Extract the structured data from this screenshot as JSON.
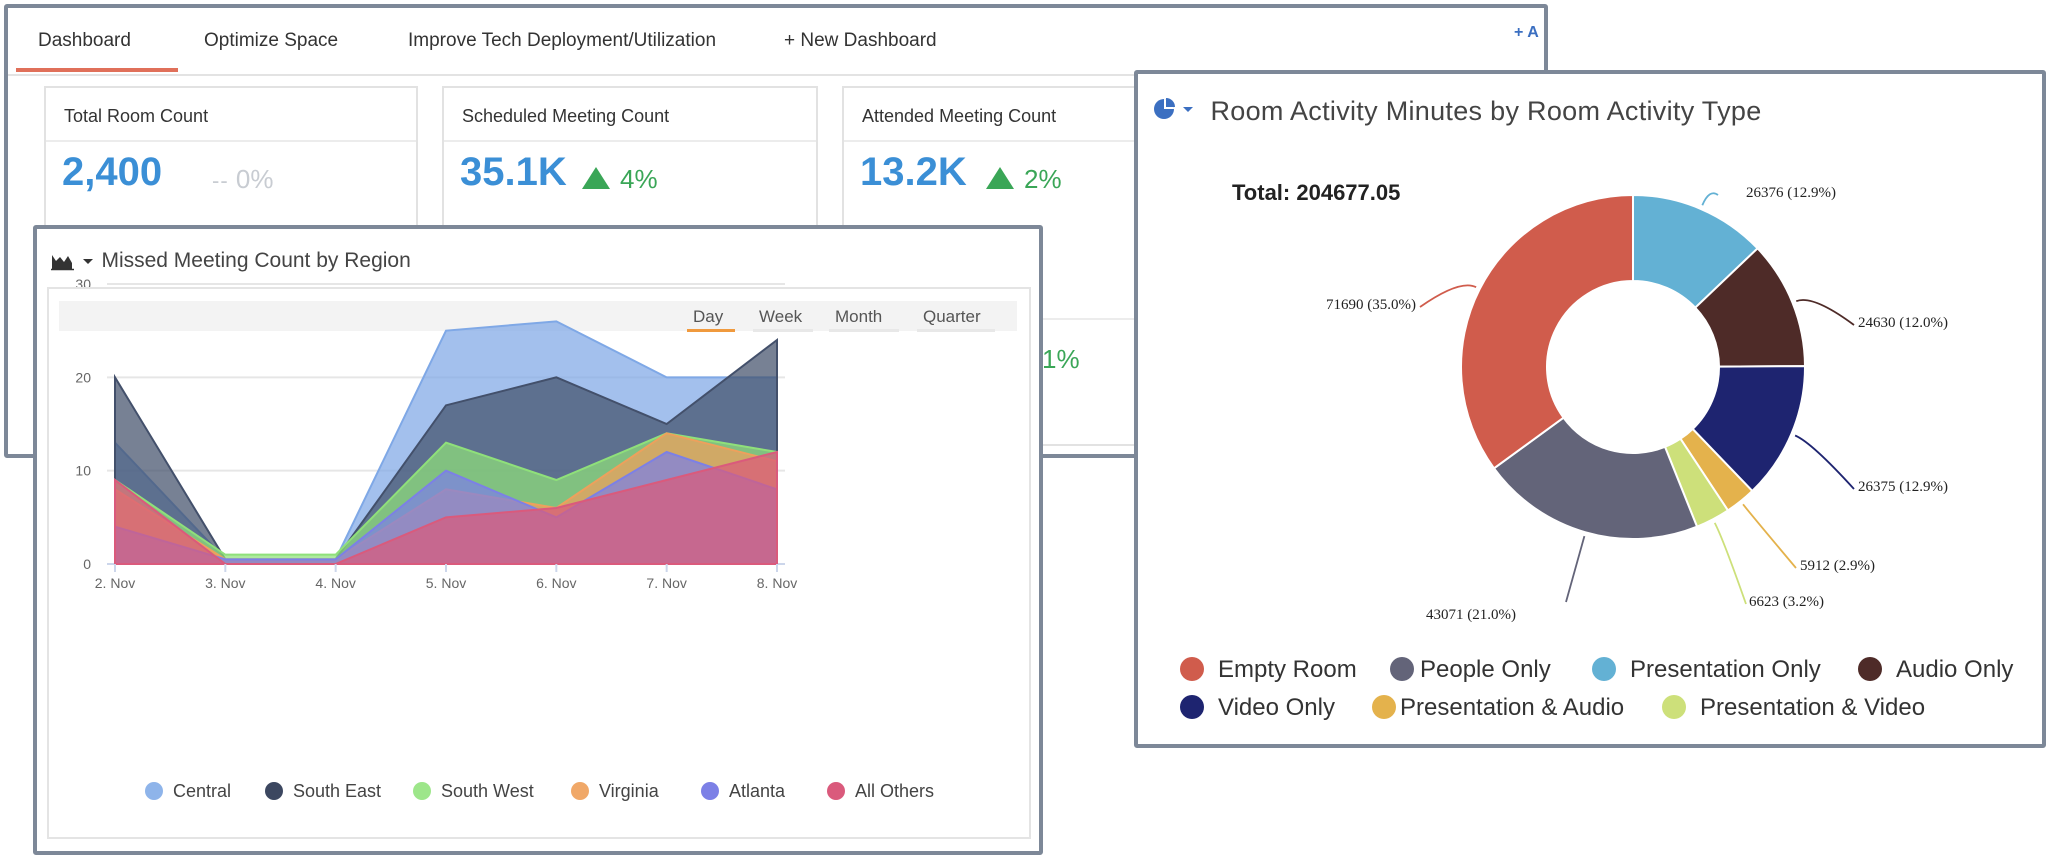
{
  "dashboard": {
    "tabs": [
      {
        "label": "Dashboard"
      },
      {
        "label": "Optimize Space"
      },
      {
        "label": "Improve Tech Deployment/Utilization"
      },
      {
        "label": "+ New Dashboard"
      }
    ],
    "add_label": "+ A",
    "kpis": [
      {
        "title": "Total Room Count",
        "value": "2,400",
        "change": "0%",
        "dash": "--"
      },
      {
        "title": "Scheduled Meeting Count",
        "value": "35.1K",
        "change": "4%"
      },
      {
        "title": "Attended Meeting Count",
        "value": "13.2K",
        "change": "2%"
      }
    ],
    "peek_text": "1%",
    "colors": {
      "accent_tab": "#e0705a",
      "kpi_value": "#3b8fd6",
      "up": "#3aa657"
    }
  },
  "line_chart": {
    "title": "Missed Meeting Count by Region",
    "icon": "area-chart-icon",
    "ranges": [
      "Day",
      "Week",
      "Month",
      "Quarter"
    ],
    "active_range": "Day"
  },
  "donut_chart": {
    "title": "Room Activity Minutes by Room Activity Type",
    "icon": "pie-chart-icon",
    "total_label": "Total: 204677.05"
  },
  "chart_data": [
    {
      "type": "area",
      "title": "Missed Meeting Count by Region",
      "x": [
        "2. Nov",
        "3. Nov",
        "4. Nov",
        "5. Nov",
        "6. Nov",
        "7. Nov",
        "8. Nov"
      ],
      "ylim": [
        0,
        30
      ],
      "yticks": [
        0,
        10,
        20,
        30
      ],
      "grid": true,
      "legend_position": "bottom",
      "series": [
        {
          "name": "Central",
          "color": "#7fa8e6",
          "values": [
            13,
            0.5,
            0.5,
            25,
            26,
            20,
            20
          ]
        },
        {
          "name": "South East",
          "color": "#43506b",
          "values": [
            20,
            0.5,
            0.5,
            17,
            20,
            15,
            24
          ]
        },
        {
          "name": "South West",
          "color": "#8fe07a",
          "values": [
            9,
            1,
            1,
            13,
            9,
            14,
            12
          ]
        },
        {
          "name": "Virginia",
          "color": "#eea05c",
          "values": [
            8,
            0.5,
            0.5,
            8,
            6,
            14,
            11
          ]
        },
        {
          "name": "Atlanta",
          "color": "#7c80e6",
          "values": [
            4,
            0.5,
            0.5,
            10,
            5,
            12,
            8
          ]
        },
        {
          "name": "All Others",
          "color": "#da5a7c",
          "values": [
            9,
            0,
            0,
            5,
            6,
            9,
            12
          ]
        }
      ]
    },
    {
      "type": "pie",
      "title": "Room Activity Minutes by Room Activity Type",
      "total": 204677.05,
      "legend_position": "bottom",
      "series": [
        {
          "name": "Empty Room",
          "value": 71690,
          "pct": "35.0%",
          "color": "#d05c4c"
        },
        {
          "name": "People Only",
          "value": 43071,
          "pct": "21.0%",
          "color": "#636479"
        },
        {
          "name": "Presentation Only",
          "value": 26376,
          "pct": "12.9%",
          "color": "#63b1d4"
        },
        {
          "name": "Audio Only",
          "value": 24630,
          "pct": "12.0%",
          "color": "#4e2b28"
        },
        {
          "name": "Video Only",
          "value": 26375,
          "pct": "12.9%",
          "color": "#1e2470"
        },
        {
          "name": "Presentation & Audio",
          "value": 5912,
          "pct": "2.9%",
          "color": "#e4b24c"
        },
        {
          "name": "Presentation & Video",
          "value": 6623,
          "pct": "3.2%",
          "color": "#cde07a"
        }
      ],
      "draw_order": [
        "Presentation Only",
        "Audio Only",
        "Video Only",
        "Presentation & Audio",
        "Presentation & Video",
        "People Only",
        "Empty Room"
      ]
    }
  ]
}
